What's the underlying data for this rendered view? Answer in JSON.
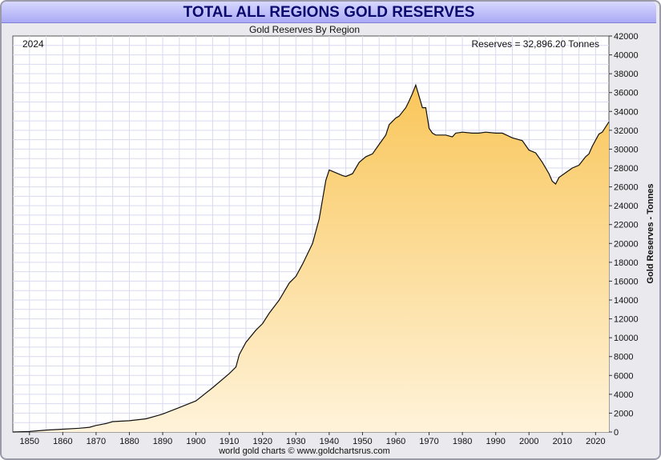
{
  "title": "TOTAL ALL REGIONS GOLD RESERVES",
  "subtitle": "Gold Reserves By Region",
  "footer": "world gold charts © www.goldchartsrus.com",
  "colors": {
    "fill_top": "#f9c65a",
    "fill_bottom": "#fff3da",
    "line": "#111111",
    "grid": "#d9d9f0",
    "title_band": "#b4b4f6"
  },
  "chart_data": {
    "type": "area",
    "title": "TOTAL ALL REGIONS GOLD RESERVES",
    "subtitle": "Gold Reserves By Region",
    "ylabel": "Gold Reserves - Tonnes",
    "xlabel": "",
    "xlim": [
      1845,
      2024
    ],
    "ylim": [
      0,
      42000
    ],
    "x_ticks": [
      1850,
      1860,
      1870,
      1880,
      1890,
      1900,
      1910,
      1920,
      1930,
      1940,
      1950,
      1960,
      1970,
      1980,
      1990,
      2000,
      2010,
      2020
    ],
    "y_ticks": [
      0,
      2000,
      4000,
      6000,
      8000,
      10000,
      12000,
      14000,
      16000,
      18000,
      20000,
      22000,
      24000,
      26000,
      28000,
      30000,
      32000,
      34000,
      36000,
      38000,
      40000,
      42000
    ],
    "grid": true,
    "year_label": "2024",
    "annotation": "Reserves = 32,896.20 Tonnes",
    "series": [
      {
        "x": [
          1845,
          1850,
          1855,
          1860,
          1865,
          1868,
          1870,
          1873,
          1875,
          1880,
          1885,
          1889,
          1890,
          1895,
          1900,
          1905,
          1910,
          1912,
          1913,
          1915,
          1918,
          1920,
          1922,
          1925,
          1928,
          1930,
          1932,
          1935,
          1937,
          1939,
          1940,
          1942,
          1944,
          1945,
          1947,
          1949,
          1951,
          1953,
          1955,
          1957,
          1958,
          1960,
          1961,
          1963,
          1964,
          1965,
          1966,
          1967,
          1968,
          1969,
          1970,
          1971,
          1972,
          1975,
          1977,
          1978,
          1980,
          1983,
          1985,
          1987,
          1990,
          1992,
          1995,
          1998,
          2000,
          2002,
          2004,
          2006,
          2007,
          2008,
          2009,
          2011,
          2013,
          2015,
          2017,
          2018,
          2019,
          2021,
          2022,
          2024
        ],
        "y": [
          0,
          50,
          200,
          300,
          400,
          500,
          700,
          900,
          1100,
          1200,
          1400,
          1800,
          1900,
          2600,
          3300,
          4700,
          6200,
          6900,
          8200,
          9500,
          10800,
          11500,
          12600,
          14000,
          15800,
          16500,
          17800,
          20000,
          22600,
          26700,
          27800,
          27500,
          27200,
          27100,
          27400,
          28600,
          29200,
          29500,
          30500,
          31500,
          32600,
          33300,
          33500,
          34400,
          35100,
          35900,
          36800,
          35600,
          34400,
          34400,
          32200,
          31700,
          31500,
          31500,
          31300,
          31700,
          31800,
          31700,
          31700,
          31800,
          31700,
          31700,
          31200,
          30900,
          29900,
          29600,
          28600,
          27400,
          26600,
          26300,
          27000,
          27500,
          28000,
          28300,
          29200,
          29500,
          30300,
          31600,
          31800,
          32896.2
        ]
      }
    ]
  }
}
